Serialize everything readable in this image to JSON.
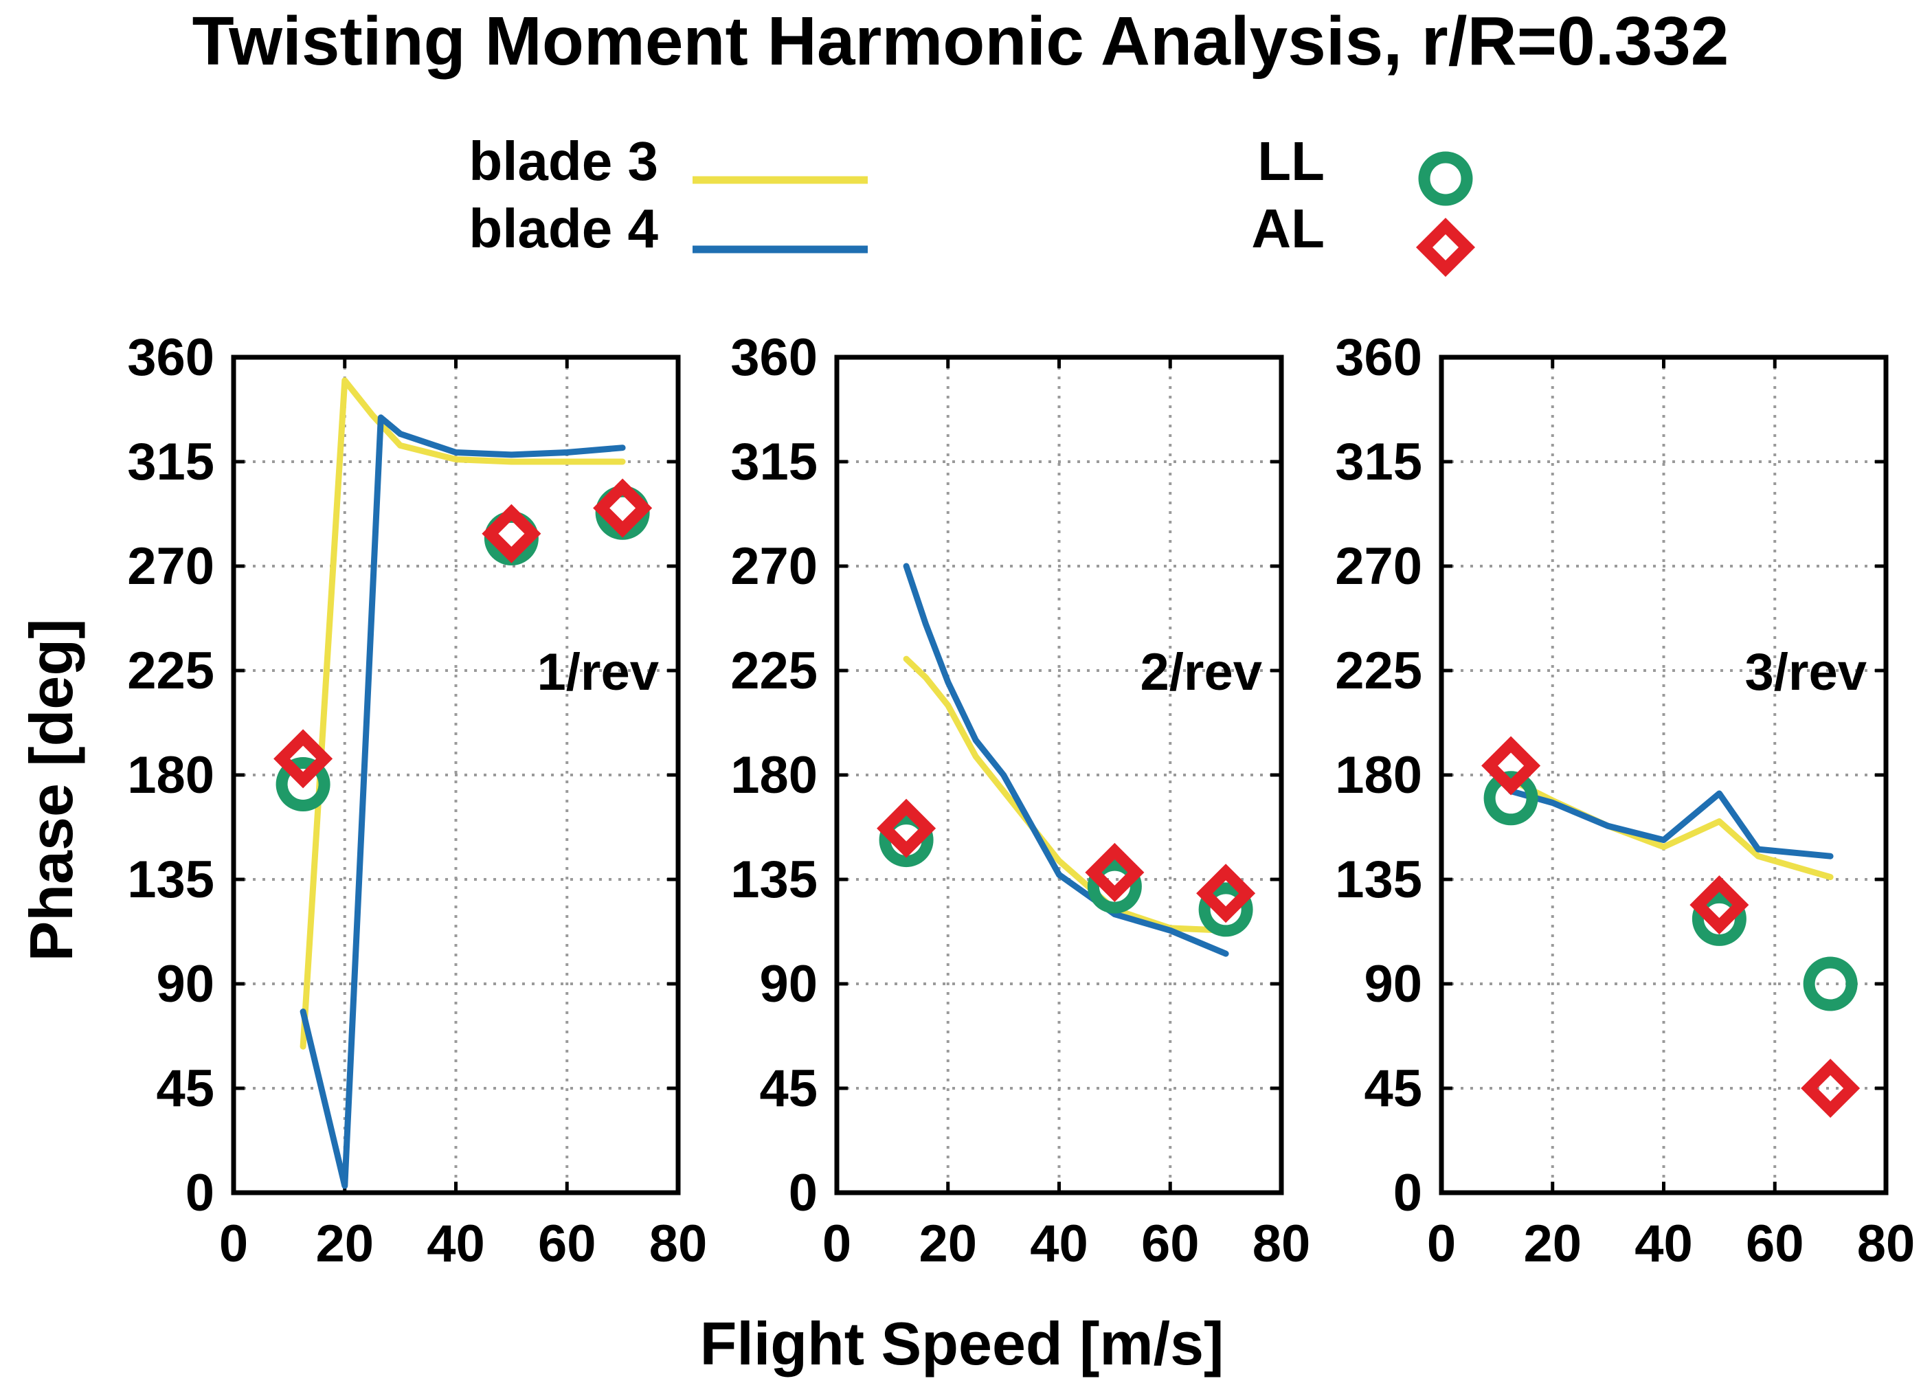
{
  "chart_data": {
    "type": "line",
    "title": "Twisting Moment Harmonic Analysis, r/R=0.332",
    "xlabel": "Flight Speed [m/s]",
    "ylabel": "Phase [deg]",
    "xlim": [
      0,
      80
    ],
    "ylim": [
      0,
      360
    ],
    "xticks": [
      "0",
      "20",
      "40",
      "60",
      "80"
    ],
    "yticks": [
      "0",
      "45",
      "90",
      "135",
      "180",
      "225",
      "270",
      "315",
      "360"
    ],
    "grid": true,
    "legend": {
      "lines": [
        {
          "label": "blade 3",
          "color": "#eee04a"
        },
        {
          "label": "blade 4",
          "color": "#1f6fb2"
        }
      ],
      "markers": [
        {
          "label": "LL",
          "color": "#1f9a68",
          "marker": "circle"
        },
        {
          "label": "AL",
          "color": "#e32027",
          "marker": "diamond"
        }
      ]
    },
    "panels": [
      {
        "label": "1/rev",
        "series": [
          {
            "name": "blade 3",
            "x": [
              12.5,
              20,
              25,
              30,
              40,
              50,
              60,
              70
            ],
            "y": [
              63,
              350,
              335,
              322,
              316,
              315,
              315,
              315
            ]
          },
          {
            "name": "blade 4",
            "x": [
              12.5,
              20,
              26.5,
              30,
              40,
              50,
              60,
              70
            ],
            "y": [
              78,
              3,
              334,
              327,
              319,
              318,
              319,
              321
            ]
          }
        ],
        "LL": {
          "x": [
            12.5,
            50,
            70
          ],
          "y": [
            176,
            282,
            293
          ]
        },
        "AL": {
          "x": [
            12.5,
            50,
            70
          ],
          "y": [
            187,
            284,
            295
          ]
        }
      },
      {
        "label": "2/rev",
        "series": [
          {
            "name": "blade 3",
            "x": [
              12.5,
              16,
              20,
              25,
              30,
              40,
              50,
              60,
              70
            ],
            "y": [
              230,
              222,
              210,
              188,
              173,
              143,
              122,
              114,
              113
            ]
          },
          {
            "name": "blade 4",
            "x": [
              12.5,
              16,
              20,
              25,
              30,
              40,
              50,
              60,
              70
            ],
            "y": [
              270,
              245,
              220,
              195,
              180,
              137,
              120,
              113,
              103
            ]
          }
        ],
        "LL": {
          "x": [
            12.5,
            50,
            70
          ],
          "y": [
            152,
            132,
            122
          ]
        },
        "AL": {
          "x": [
            12.5,
            50,
            70
          ],
          "y": [
            157,
            138,
            129
          ]
        }
      },
      {
        "label": "3/rev",
        "series": [
          {
            "name": "blade 3",
            "x": [
              12.5,
              20,
              30,
              40,
              50,
              57,
              70
            ],
            "y": [
              178,
              169,
              158,
              149,
              160,
              145,
              136
            ]
          },
          {
            "name": "blade 4",
            "x": [
              12.5,
              20,
              30,
              40,
              50,
              57,
              70
            ],
            "y": [
              173,
              168,
              158,
              152,
              172,
              148,
              145
            ]
          }
        ],
        "LL": {
          "x": [
            12.5,
            50,
            70
          ],
          "y": [
            170,
            118,
            90
          ]
        },
        "AL": {
          "x": [
            12.5,
            50,
            70
          ],
          "y": [
            184,
            124,
            45
          ]
        }
      }
    ]
  }
}
